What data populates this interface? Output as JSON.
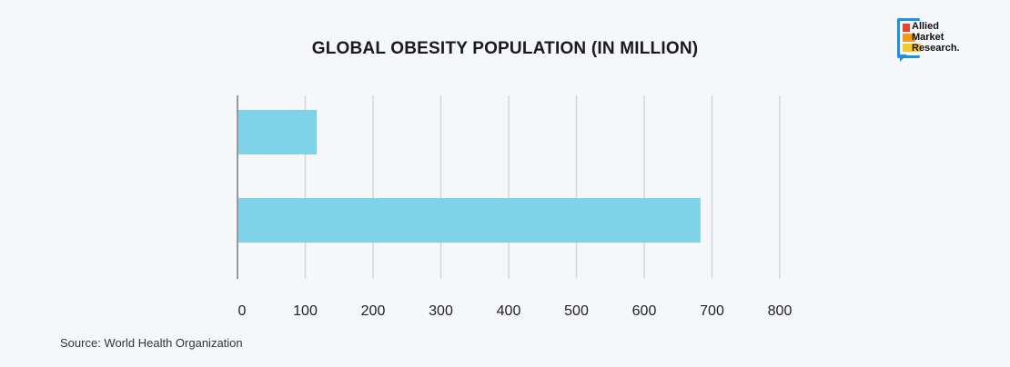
{
  "chart_data": {
    "type": "bar",
    "orientation": "horizontal",
    "title": "GLOBAL OBESITY POPULATION (IN MILLION)",
    "categories": [
      "",
      ""
    ],
    "values": [
      117,
      683
    ],
    "xlim": [
      0,
      800
    ],
    "xticks": [
      0,
      100,
      200,
      300,
      400,
      500,
      600,
      700,
      800
    ],
    "xlabel": "",
    "ylabel": "",
    "grid": true,
    "bar_color": "#7fd3e8"
  },
  "source": "Source: World Health Organization",
  "logo": {
    "line1": "Allied",
    "line2": "Market",
    "line3": "Research."
  }
}
